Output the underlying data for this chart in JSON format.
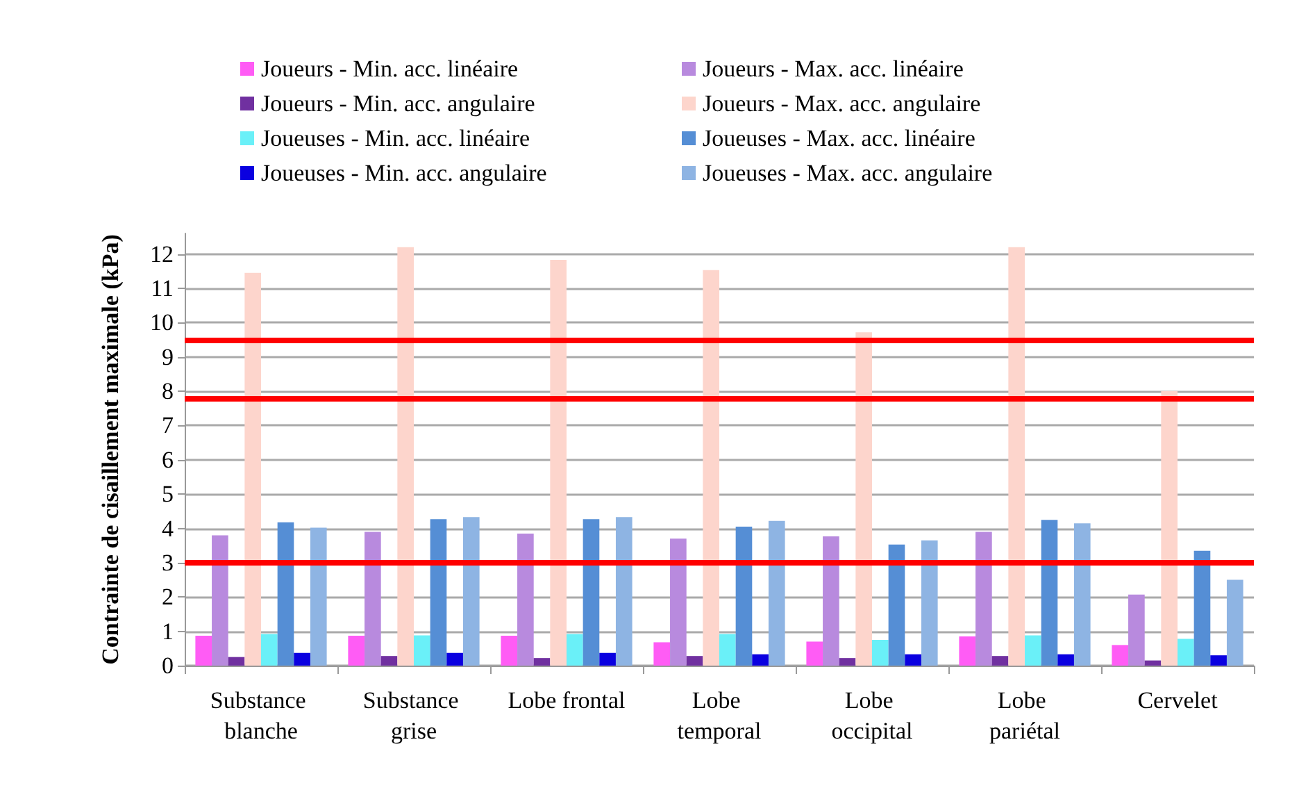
{
  "chart_data": {
    "type": "bar",
    "ylabel": "Contrainte de cisaillement maximale (kPa)",
    "categories": [
      "Substance blanche",
      "Substance grise",
      "Lobe frontal",
      "Lobe temporal",
      "Lobe occipital",
      "Lobe pariétal",
      "Cervelet"
    ],
    "series": [
      {
        "name": "Joueurs - Min. acc. linéaire",
        "color": "#ff5cf5",
        "values": [
          0.87,
          0.87,
          0.87,
          0.68,
          0.7,
          0.85,
          0.6
        ]
      },
      {
        "name": "Joueurs - Max. acc. linéaire",
        "color": "#b88ade",
        "values": [
          3.8,
          3.9,
          3.85,
          3.7,
          3.77,
          3.9,
          2.07
        ]
      },
      {
        "name": "Joueurs - Min. acc. angulaire",
        "color": "#7030a0",
        "values": [
          0.25,
          0.28,
          0.22,
          0.28,
          0.22,
          0.28,
          0.15
        ]
      },
      {
        "name": "Joueurs - Max. acc. angulaire",
        "color": "#fdd5cc",
        "values": [
          11.45,
          12.2,
          11.83,
          11.53,
          9.72,
          12.2,
          8.0
        ]
      },
      {
        "name": "Joueuses - Min. acc. linéaire",
        "color": "#6af0f8",
        "values": [
          0.92,
          0.88,
          0.92,
          0.92,
          0.75,
          0.88,
          0.78
        ]
      },
      {
        "name": "Joueuses - Max. acc. linéaire",
        "color": "#558ed5",
        "values": [
          4.18,
          4.27,
          4.27,
          4.05,
          3.53,
          4.25,
          3.35
        ]
      },
      {
        "name": "Joueuses - Min. acc. angulaire",
        "color": "#0a00e0",
        "values": [
          0.37,
          0.37,
          0.37,
          0.33,
          0.33,
          0.33,
          0.3
        ]
      },
      {
        "name": "Joueuses - Max. acc. angulaire",
        "color": "#8eb4e3",
        "values": [
          4.02,
          4.33,
          4.33,
          4.22,
          3.65,
          4.15,
          2.5
        ]
      }
    ],
    "ylim": [
      0,
      12.6
    ],
    "yticks": [
      0,
      1,
      2,
      3,
      4,
      5,
      6,
      7,
      8,
      9,
      10,
      11,
      12
    ],
    "ref_lines": [
      {
        "axis": "y",
        "value": 9.5,
        "color": "#ff0000"
      },
      {
        "axis": "y",
        "value": 7.8,
        "color": "#ff0000"
      },
      {
        "axis": "y",
        "value": 3,
        "color": "#ff0000"
      }
    ],
    "grid": "y",
    "legend": "top"
  }
}
